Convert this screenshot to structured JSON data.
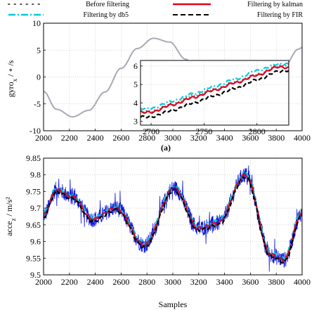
{
  "legend": [
    {
      "label": "Before filtering",
      "color": "#555555",
      "style": "dotted"
    },
    {
      "label": "Filtering by kalman",
      "color": "#e0001b",
      "style": "solid"
    },
    {
      "label": "Filtering by db5",
      "color": "#00c8e0",
      "style": "dash-dot"
    },
    {
      "label": "Filtering by FIR",
      "color": "#000000",
      "style": "dashed"
    }
  ],
  "chart_data": [
    {
      "type": "line",
      "panel_label": "(a)",
      "xlabel": "",
      "ylabel": "gyro / ∘ /s",
      "ylabel_subscript": "x",
      "xlim": [
        2000,
        4000
      ],
      "ylim": [
        -10,
        10
      ],
      "x_ticks": [
        "2000",
        "2200",
        "2400",
        "2600",
        "2800",
        "3000",
        "3200",
        "3400",
        "3600",
        "3800",
        "4000"
      ],
      "y_ticks": [
        "10",
        "5",
        "0",
        "-5",
        "-10"
      ],
      "grid": true,
      "series": [
        {
          "name": "Before filtering",
          "color": "#a9a9b6",
          "x": [
            2000,
            2100,
            2225,
            2350,
            2475,
            2600,
            2725,
            2850,
            2975,
            3100,
            3225,
            3350,
            3475,
            3600,
            3725,
            3850,
            3975,
            4000
          ],
          "y": [
            -2.7,
            -6.0,
            -7.4,
            -6.2,
            -2.8,
            1.6,
            5.3,
            7.2,
            6.5,
            3.3,
            -1.4,
            -5.6,
            -7.3,
            -6.1,
            -2.6,
            1.6,
            5.2,
            5.5
          ]
        }
      ],
      "inset": {
        "xlim": [
          2690,
          2830
        ],
        "ylim": [
          2.8,
          6.3
        ],
        "x_ticks": [
          "2700",
          "2750",
          "2800"
        ],
        "y_ticks": [
          "6",
          "5",
          "4",
          "3"
        ],
        "grid": true,
        "series": [
          {
            "name": "Before filtering",
            "x": [
              2700,
              2720,
              2740,
              2760,
              2780,
              2800,
              2820,
              2830
            ],
            "y": [
              3.55,
              3.95,
              4.4,
              4.75,
              5.15,
              5.55,
              6.0,
              6.05
            ]
          },
          {
            "name": "Filtering by kalman",
            "x": [
              2700,
              2720,
              2740,
              2760,
              2780,
              2800,
              2820,
              2830
            ],
            "y": [
              3.5,
              3.9,
              4.3,
              4.7,
              5.1,
              5.5,
              5.95,
              5.9
            ]
          },
          {
            "name": "Filtering by db5",
            "x": [
              2700,
              2720,
              2740,
              2760,
              2780,
              2800,
              2820,
              2830
            ],
            "y": [
              3.7,
              4.1,
              4.5,
              4.9,
              5.3,
              5.75,
              6.1,
              6.1
            ]
          },
          {
            "name": "Filtering by FIR",
            "x": [
              2700,
              2720,
              2740,
              2760,
              2780,
              2800,
              2820,
              2830
            ],
            "y": [
              3.25,
              3.6,
              4.0,
              4.4,
              4.8,
              5.25,
              5.7,
              5.75
            ]
          }
        ]
      }
    },
    {
      "type": "line",
      "xlabel": "Samples",
      "ylabel": "acce / m/s²",
      "ylabel_subscript": "z",
      "xlim": [
        2000,
        4000
      ],
      "ylim": [
        9.5,
        9.85
      ],
      "x_ticks": [
        "2000",
        "2200",
        "2400",
        "2600",
        "2800",
        "3000",
        "3200",
        "3400",
        "3600",
        "3800",
        "4000"
      ],
      "y_ticks": [
        "9.85",
        "9.8",
        "9.75",
        "9.7",
        "9.65",
        "9.6",
        "9.55",
        "9.5"
      ],
      "grid": true,
      "noise_amplitude": 0.035,
      "series": [
        {
          "name": "Before filtering",
          "color": "#0b14d9",
          "x": [
            2000,
            2100,
            2220,
            2380,
            2560,
            2780,
            3010,
            3200,
            3350,
            3560,
            3760,
            3860,
            4000
          ],
          "y": [
            9.68,
            9.755,
            9.735,
            9.667,
            9.7,
            9.59,
            9.76,
            9.64,
            9.655,
            9.8,
            9.56,
            9.545,
            9.685
          ]
        },
        {
          "name": "Filtering by kalman",
          "x": [
            2000,
            2100,
            2220,
            2380,
            2560,
            2780,
            3010,
            3200,
            3350,
            3560,
            3760,
            3860,
            4000
          ],
          "y": [
            9.68,
            9.755,
            9.735,
            9.667,
            9.7,
            9.59,
            9.76,
            9.64,
            9.655,
            9.8,
            9.56,
            9.545,
            9.685
          ]
        }
      ]
    }
  ]
}
